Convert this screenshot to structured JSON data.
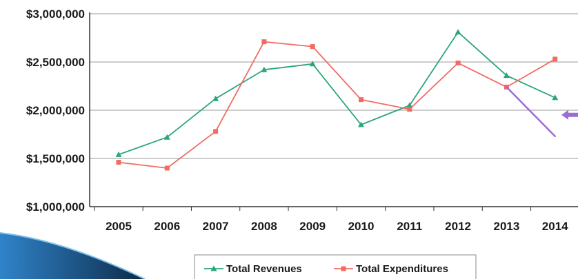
{
  "chart_data": {
    "type": "line",
    "title": "",
    "xlabel": "",
    "ylabel": "",
    "categories": [
      "2005",
      "2006",
      "2007",
      "2008",
      "2009",
      "2010",
      "2011",
      "2012",
      "2013",
      "2014"
    ],
    "ylim": [
      1000000,
      3000000
    ],
    "yticks": [
      1000000,
      1500000,
      2000000,
      2500000,
      3000000
    ],
    "ytick_labels": [
      "$1,000,000",
      "$1,500,000",
      "$2,000,000",
      "$2,500,000",
      "$3,000,000"
    ],
    "grid": "horizontal",
    "legend_position": "bottom",
    "series": [
      {
        "name": "Total Revenues",
        "color": "#2aa57f",
        "marker": "triangle",
        "values": [
          1540000,
          1720000,
          2120000,
          2420000,
          2480000,
          1850000,
          2050000,
          2810000,
          2360000,
          2130000
        ]
      },
      {
        "name": "Total Expenditures",
        "color": "#f26b63",
        "marker": "square",
        "values": [
          1460000,
          1400000,
          1780000,
          2710000,
          2660000,
          2110000,
          2010000,
          2490000,
          2240000,
          2530000
        ]
      }
    ],
    "annotation": {
      "type": "projection-line",
      "color": "#9b6fd0",
      "from": {
        "x": "2013",
        "y": 2240000
      },
      "to": {
        "x": "2014",
        "y": 1730000
      },
      "arrow": "pointing-left-at-right-edge"
    }
  }
}
